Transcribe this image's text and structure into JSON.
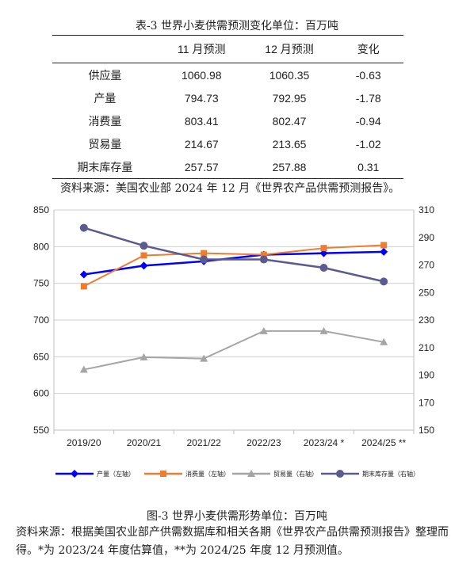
{
  "table": {
    "title": "表-3 世界小麦供需预测变化单位：百万吨",
    "headers": [
      "",
      "11 月预测",
      "12 月预测",
      "变化"
    ],
    "rows": [
      [
        "供应量",
        "1060.98",
        "1060.35",
        "-0.63"
      ],
      [
        "产量",
        "794.73",
        "792.95",
        "-1.78"
      ],
      [
        "消费量",
        "803.41",
        "802.47",
        "-0.94"
      ],
      [
        "贸易量",
        "214.67",
        "213.65",
        "-1.02"
      ],
      [
        "期末库存量",
        "257.57",
        "257.88",
        "0.31"
      ]
    ],
    "source": "资料来源：美国农业部 2024 年 12 月《世界农产品供需预测报告》。"
  },
  "figure": {
    "title": "图-3 世界小麦供需形势单位：百万吨",
    "source": "资料来源：根据美国农业部产供需数据库和相关各期《世界农产品供需预测报告》整理而得。*为 2023/24 年度估算值，**为 2024/25 年度 12 月预测值。"
  },
  "colors": {
    "production": "#0000FF",
    "consumption": "#ED7D31",
    "trade": "#A5A5A5",
    "ending_stocks": "#5B5B8F"
  },
  "chart_data": {
    "type": "line",
    "categories": [
      "2019/20",
      "2020/21",
      "2021/22",
      "2022/23",
      "2023/24 *",
      "2024/25 **"
    ],
    "y_left": {
      "ylim": [
        550,
        850
      ],
      "ticks": [
        550,
        600,
        650,
        700,
        750,
        800,
        850
      ]
    },
    "y_right": {
      "ylim": [
        150,
        310
      ],
      "ticks": [
        150,
        170,
        190,
        210,
        230,
        250,
        270,
        290,
        310
      ]
    },
    "grid": true,
    "legend_position": "bottom",
    "series": [
      {
        "name": "产量（左轴）",
        "axis": "left",
        "color": "#0000FF",
        "marker": "diamond",
        "values": [
          762,
          774,
          780,
          789,
          791,
          793
        ]
      },
      {
        "name": "消费量（左轴）",
        "axis": "left",
        "color": "#ED7D31",
        "marker": "square",
        "values": [
          746,
          788,
          791,
          789,
          798,
          802
        ]
      },
      {
        "name": "贸易量（右轴）",
        "axis": "right",
        "color": "#A5A5A5",
        "marker": "triangle",
        "values": [
          194,
          203,
          202,
          222,
          222,
          214
        ]
      },
      {
        "name": "期末库存量（右轴）",
        "axis": "right",
        "color": "#5B5B8F",
        "marker": "circle",
        "values": [
          297,
          284,
          274,
          274,
          268,
          258
        ]
      }
    ]
  }
}
